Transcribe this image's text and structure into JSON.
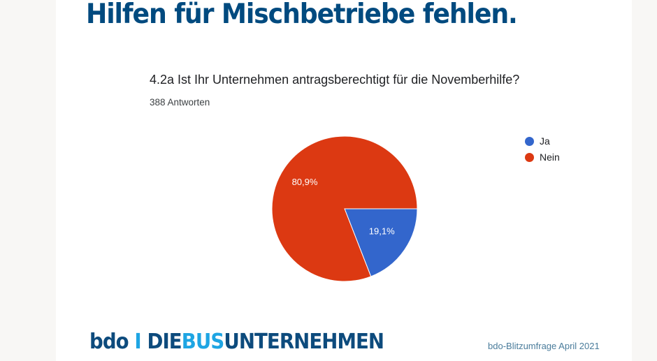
{
  "slide": {
    "title": "Hilfen für Mischbetriebe fehlen.",
    "source": "bdo-Blitzumfrage April 2021"
  },
  "logo": {
    "mark": "bdo",
    "sep": "I",
    "part1": "DIE",
    "part2": "BUS",
    "part3": "UNTERNEHMEN"
  },
  "chart_data": {
    "type": "pie",
    "title": "4.2a Ist Ihr Unternehmen antragsberechtigt für die Novemberhilfe?",
    "subtitle": "388 Antworten",
    "categories": [
      "Ja",
      "Nein"
    ],
    "values": [
      19.1,
      80.9
    ],
    "labels": [
      "19,1%",
      "80,9%"
    ],
    "colors": [
      "#3366cc",
      "#dc3912"
    ],
    "legend": "right"
  }
}
